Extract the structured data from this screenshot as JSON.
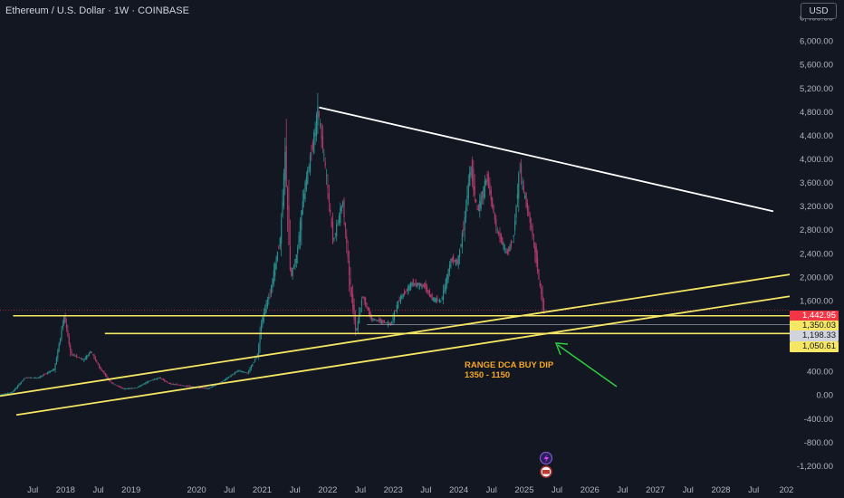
{
  "header": {
    "title": "Ethereum / U.S. Dollar · 1W · COINBASE"
  },
  "currency_button": "USD",
  "price_labels": [
    {
      "value": "1,442.95",
      "bg": "#f23645",
      "fg": "#ffffff"
    },
    {
      "value": "1,350.03",
      "bg": "#f5e663",
      "fg": "#131722"
    },
    {
      "value": "1,198.33",
      "bg": "#d1d4dc",
      "fg": "#131722"
    },
    {
      "value": "1,050.61",
      "bg": "#f5e663",
      "fg": "#131722"
    }
  ],
  "annotation": {
    "line1": "RANGE DCA BUY DIP",
    "line2": "1350 - 1150"
  },
  "colors": {
    "background": "#131722",
    "up": "#2a8c8c",
    "down": "#b03a6a",
    "support": "#f5e663",
    "resistance": "#ffffff",
    "arrow": "#2ecc40",
    "annotation": "#f5a623"
  },
  "chart_data": {
    "type": "candlestick",
    "symbol": "Ethereum / U.S. Dollar",
    "timeframe": "1W",
    "exchange": "COINBASE",
    "y_axis": {
      "ticks": [
        "6,400.00",
        "6,000.00",
        "5,600.00",
        "5,200.00",
        "4,800.00",
        "4,400.00",
        "4,000.00",
        "3,600.00",
        "3,200.00",
        "2,800.00",
        "2,400.00",
        "2,000.00",
        "1,600.00",
        "400.00",
        "0.00",
        "-400.00",
        "-800.00",
        "-1,200.00"
      ],
      "tick_values": [
        6400,
        6000,
        5600,
        5200,
        4800,
        4400,
        4000,
        3600,
        3200,
        2800,
        2400,
        2000,
        1600,
        400,
        0,
        -400,
        -800,
        -1200
      ],
      "range": [
        -1400,
        6700
      ]
    },
    "x_axis": {
      "ticks": [
        "Jul",
        "2018",
        "Jul",
        "2019",
        "2020",
        "Jul",
        "2021",
        "Jul",
        "2022",
        "Jul",
        "2023",
        "Jul",
        "2024",
        "Jul",
        "2025",
        "Jul",
        "2026",
        "Jul",
        "2027",
        "Jul",
        "2028",
        "Jul",
        "202"
      ],
      "tick_dates": [
        2017.5,
        2018.0,
        2018.5,
        2019.0,
        2020.0,
        2020.5,
        2021.0,
        2021.5,
        2022.0,
        2022.5,
        2023.0,
        2023.5,
        2024.0,
        2024.5,
        2025.0,
        2025.5,
        2026.0,
        2026.5,
        2027.0,
        2027.5,
        2028.0,
        2028.5,
        2029.0
      ],
      "range": [
        2017.0,
        2029.05
      ]
    },
    "price_path": [
      [
        2017.0,
        10
      ],
      [
        2017.2,
        50
      ],
      [
        2017.4,
        300
      ],
      [
        2017.6,
        300
      ],
      [
        2017.85,
        450
      ],
      [
        2018.0,
        1350
      ],
      [
        2018.1,
        700
      ],
      [
        2018.3,
        600
      ],
      [
        2018.4,
        750
      ],
      [
        2018.55,
        450
      ],
      [
        2018.7,
        230
      ],
      [
        2018.9,
        110
      ],
      [
        2019.1,
        130
      ],
      [
        2019.3,
        250
      ],
      [
        2019.45,
        300
      ],
      [
        2019.6,
        200
      ],
      [
        2019.8,
        170
      ],
      [
        2020.0,
        140
      ],
      [
        2020.2,
        120
      ],
      [
        2020.4,
        230
      ],
      [
        2020.65,
        420
      ],
      [
        2020.8,
        380
      ],
      [
        2020.95,
        700
      ],
      [
        2021.0,
        1200
      ],
      [
        2021.15,
        1800
      ],
      [
        2021.3,
        2700
      ],
      [
        2021.37,
        4100
      ],
      [
        2021.45,
        2000
      ],
      [
        2021.55,
        2400
      ],
      [
        2021.65,
        3400
      ],
      [
        2021.8,
        4300
      ],
      [
        2021.87,
        4860
      ],
      [
        2022.0,
        3700
      ],
      [
        2022.1,
        2600
      ],
      [
        2022.25,
        3300
      ],
      [
        2022.35,
        2000
      ],
      [
        2022.45,
        1050
      ],
      [
        2022.55,
        1700
      ],
      [
        2022.68,
        1300
      ],
      [
        2022.85,
        1250
      ],
      [
        2022.98,
        1200
      ],
      [
        2023.1,
        1600
      ],
      [
        2023.3,
        1900
      ],
      [
        2023.5,
        1850
      ],
      [
        2023.6,
        1650
      ],
      [
        2023.75,
        1600
      ],
      [
        2023.9,
        2300
      ],
      [
        2024.0,
        2250
      ],
      [
        2024.1,
        2900
      ],
      [
        2024.2,
        3900
      ],
      [
        2024.3,
        3100
      ],
      [
        2024.45,
        3700
      ],
      [
        2024.6,
        2800
      ],
      [
        2024.75,
        2400
      ],
      [
        2024.85,
        2650
      ],
      [
        2024.95,
        3900
      ],
      [
        2025.0,
        3500
      ],
      [
        2025.15,
        2700
      ],
      [
        2025.25,
        1900
      ],
      [
        2025.32,
        1443
      ]
    ],
    "trendlines": [
      {
        "name": "resistance",
        "points": [
          [
            2021.87,
            4880
          ],
          [
            2028.8,
            3120
          ]
        ]
      },
      {
        "name": "support-channel-upper",
        "points": [
          [
            2017.0,
            -10
          ],
          [
            2029.05,
            2050
          ]
        ]
      },
      {
        "name": "support-channel-lower",
        "points": [
          [
            2017.25,
            -330
          ],
          [
            2029.05,
            1680
          ]
        ]
      }
    ],
    "horizontal_levels": [
      {
        "value": 1350,
        "from": 2017.2,
        "to": 2029.05
      },
      {
        "value": 1050,
        "from": 2018.6,
        "to": 2029.05
      },
      {
        "value": 1198,
        "from": 2022.6,
        "to": 2029.05
      }
    ],
    "last_price": 1442.95,
    "annotation": "RANGE DCA BUY DIP 1350 - 1150"
  }
}
